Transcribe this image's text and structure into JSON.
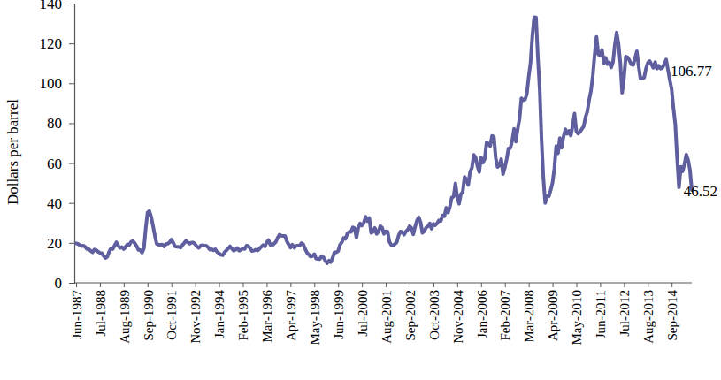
{
  "chart_data": {
    "type": "line",
    "y_label": "Dollars per barrel",
    "color": "#5f5f9f",
    "ylim": [
      0,
      140
    ],
    "yticks": [
      0,
      20,
      40,
      60,
      80,
      100,
      120,
      140
    ],
    "categories": [
      "Jun-1987",
      null,
      null,
      null,
      null,
      null,
      null,
      null,
      null,
      null,
      null,
      null,
      null,
      "Jul-1988",
      null,
      null,
      null,
      null,
      null,
      null,
      null,
      null,
      null,
      null,
      null,
      null,
      "Aug-1989",
      null,
      null,
      null,
      null,
      null,
      null,
      null,
      null,
      null,
      null,
      null,
      null,
      "Sep-1990",
      null,
      null,
      null,
      null,
      null,
      null,
      null,
      null,
      null,
      null,
      null,
      null,
      "Oct-1991",
      null,
      null,
      null,
      null,
      null,
      null,
      null,
      null,
      null,
      null,
      null,
      null,
      "Nov-1992",
      null,
      null,
      null,
      null,
      null,
      null,
      null,
      null,
      null,
      null,
      null,
      null,
      "Jan-1994",
      null,
      null,
      null,
      null,
      null,
      null,
      null,
      null,
      null,
      null,
      null,
      null,
      "Feb-1995",
      null,
      null,
      null,
      null,
      null,
      null,
      null,
      null,
      null,
      null,
      null,
      null,
      "Mar-1996",
      null,
      null,
      null,
      null,
      null,
      null,
      null,
      null,
      null,
      null,
      null,
      null,
      "Apr-1997",
      null,
      null,
      null,
      null,
      null,
      null,
      null,
      null,
      null,
      null,
      null,
      null,
      "May-1998",
      null,
      null,
      null,
      null,
      null,
      null,
      null,
      null,
      null,
      null,
      null,
      null,
      "Jun-1999",
      null,
      null,
      null,
      null,
      null,
      null,
      null,
      null,
      null,
      null,
      null,
      null,
      "Jul-2000",
      null,
      null,
      null,
      null,
      null,
      null,
      null,
      null,
      null,
      null,
      null,
      null,
      "Aug-2001",
      null,
      null,
      null,
      null,
      null,
      null,
      null,
      null,
      null,
      null,
      null,
      null,
      "Sep-2002",
      null,
      null,
      null,
      null,
      null,
      null,
      null,
      null,
      null,
      null,
      null,
      null,
      "Oct-2003",
      null,
      null,
      null,
      null,
      null,
      null,
      null,
      null,
      null,
      null,
      null,
      null,
      "Nov-2004",
      null,
      null,
      null,
      null,
      null,
      null,
      null,
      null,
      null,
      null,
      null,
      null,
      "Jan-2006",
      null,
      null,
      null,
      null,
      null,
      null,
      null,
      null,
      null,
      null,
      null,
      null,
      "Feb-2007",
      null,
      null,
      null,
      null,
      null,
      null,
      null,
      null,
      null,
      null,
      null,
      null,
      "Mar-2008",
      null,
      null,
      null,
      null,
      null,
      null,
      null,
      null,
      null,
      null,
      null,
      null,
      "Apr-2009",
      null,
      null,
      null,
      null,
      null,
      null,
      null,
      null,
      null,
      null,
      null,
      null,
      "May-2010",
      null,
      null,
      null,
      null,
      null,
      null,
      null,
      null,
      null,
      null,
      null,
      null,
      "Jun-2011",
      null,
      null,
      null,
      null,
      null,
      null,
      null,
      null,
      null,
      null,
      null,
      null,
      "Jul-2012",
      null,
      null,
      null,
      null,
      null,
      null,
      null,
      null,
      null,
      null,
      null,
      null,
      "Aug-2013",
      null,
      null,
      null,
      null,
      null,
      null,
      null,
      null,
      null,
      null,
      null,
      null,
      "Sep-2014",
      null,
      null,
      null,
      null,
      null,
      null,
      null,
      null,
      null,
      null,
      null
    ],
    "values": [
      19.8,
      19.5,
      18.9,
      18.4,
      18.6,
      18.0,
      16.9,
      16.8,
      16.0,
      15.3,
      16.7,
      16.4,
      15.6,
      15.0,
      14.9,
      13.5,
      12.4,
      13.0,
      15.5,
      17.2,
      16.9,
      18.7,
      20.3,
      18.6,
      17.5,
      17.9,
      16.9,
      18.0,
      19.3,
      19.0,
      20.5,
      21.0,
      19.8,
      18.4,
      16.5,
      16.4,
      15.1,
      17.2,
      27.2,
      35.2,
      36.0,
      33.0,
      28.4,
      23.6,
      19.5,
      19.1,
      19.1,
      19.2,
      18.2,
      19.4,
      19.6,
      20.2,
      21.7,
      20.1,
      18.2,
      18.0,
      18.0,
      17.6,
      18.9,
      19.9,
      21.1,
      20.2,
      19.6,
      20.2,
      20.2,
      19.3,
      18.1,
      17.5,
      18.6,
      18.8,
      18.6,
      18.6,
      17.8,
      16.6,
      16.8,
      16.3,
      16.8,
      15.4,
      14.8,
      14.0,
      13.8,
      15.3,
      16.2,
      17.2,
      18.3,
      17.1,
      16.1,
      16.6,
      17.5,
      16.1,
      16.6,
      17.1,
      16.9,
      18.6,
      18.4,
      17.3,
      15.9,
      16.1,
      16.6,
      16.2,
      17.0,
      18.0,
      18.9,
      18.2,
      20.3,
      21.4,
      19.1,
      18.6,
      19.6,
      20.5,
      22.6,
      24.1,
      23.6,
      23.5,
      23.5,
      20.8,
      19.2,
      17.6,
      19.1,
      17.6,
      18.5,
      18.6,
      18.6,
      19.9,
      19.2,
      17.0,
      15.1,
      14.1,
      13.1,
      13.4,
      14.4,
      12.1,
      12.0,
      11.9,
      13.4,
      12.8,
      11.0,
      9.8,
      11.1,
      10.3,
      12.5,
      15.3,
      15.3,
      15.9,
      19.0,
      20.3,
      22.5,
      22.0,
      24.6,
      25.5,
      25.5,
      27.8,
      27.3,
      22.7,
      27.6,
      29.8,
      28.7,
      30.0,
      33.1,
      30.9,
      32.5,
      25.0,
      25.6,
      27.5,
      24.5,
      25.7,
      28.4,
      27.7,
      24.5,
      25.8,
      25.7,
      20.5,
      18.9,
      18.7,
      19.4,
      20.3,
      23.7,
      25.7,
      25.4,
      24.1,
      25.7,
      26.6,
      28.4,
      27.5,
      24.3,
      28.0,
      31.2,
      32.8,
      30.3,
      25.0,
      25.8,
      27.6,
      28.4,
      29.8,
      27.1,
      29.6,
      28.8,
      29.8,
      31.3,
      30.9,
      33.8,
      33.4,
      37.6,
      35.2,
      38.2,
      42.7,
      43.2,
      49.8,
      43.1,
      39.6,
      44.5,
      45.5,
      53.1,
      51.9,
      49.0,
      55.6,
      57.6,
      64.1,
      62.9,
      58.5,
      55.5,
      62.9,
      60.2,
      62.1,
      70.3,
      69.8,
      68.6,
      73.7,
      73.2,
      62.5,
      58.0,
      58.8,
      62.0,
      54.5,
      57.8,
      62.1,
      67.4,
      67.5,
      71.3,
      77.2,
      70.8,
      77.1,
      82.3,
      92.5,
      91.5,
      91.9,
      94.8,
      103.3,
      110.2,
      123.9,
      133.1,
      133.0,
      113.2,
      97.1,
      71.6,
      52.5,
      40.0,
      43.4,
      43.3,
      46.5,
      50.2,
      57.4,
      68.6,
      64.9,
      72.5,
      67.7,
      73.2,
      77.0,
      74.7,
      76.2,
      73.8,
      78.8,
      84.8,
      75.9,
      74.8,
      75.6,
      77.1,
      78.4,
      83.0,
      85.9,
      91.8,
      96.3,
      104.0,
      114.6,
      123.3,
      114.5,
      113.9,
      116.7,
      110.2,
      112.8,
      109.6,
      110.5,
      107.9,
      110.7,
      119.3,
      125.5,
      119.8,
      110.3,
      95.2,
      102.6,
      113.4,
      113.0,
      111.5,
      109.5,
      109.2,
      112.3,
      116.1,
      108.5,
      102.3,
      102.6,
      102.9,
      107.4,
      110.3,
      111.2,
      109.5,
      107.8,
      110.6,
      107.4,
      108.8,
      107.4,
      107.8,
      109.7,
      111.9,
      106.77,
      101.6,
      97.1,
      87.4,
      79.4,
      62.3,
      47.8,
      58.1,
      55.9,
      59.5,
      64.3,
      61.5,
      56.6,
      46.52
    ],
    "annotations": [
      {
        "text": "106.77",
        "point": 323
      },
      {
        "text": "46.52",
        "point": 336
      }
    ]
  }
}
